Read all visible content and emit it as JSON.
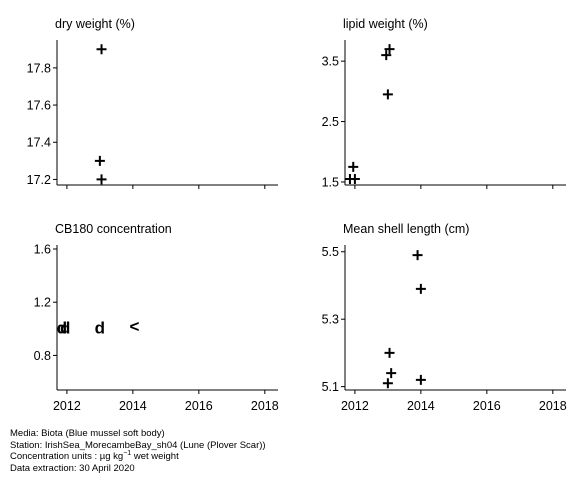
{
  "chart_data": [
    {
      "type": "scatter",
      "title": "dry weight (%)",
      "xlim": [
        2011.7,
        2018.4
      ],
      "ylim": [
        17.17,
        17.95
      ],
      "xticks": [
        2012,
        2014,
        2016,
        2018
      ],
      "yticks": [
        17.2,
        17.4,
        17.6,
        17.8
      ],
      "ytick_labels": [
        "17.2",
        "17.4",
        "17.6",
        "17.8"
      ],
      "show_x_labels": false,
      "points": [
        {
          "x": 2013.05,
          "y": 17.9,
          "marker": "+"
        },
        {
          "x": 2013.0,
          "y": 17.3,
          "marker": "+"
        },
        {
          "x": 2013.05,
          "y": 17.2,
          "marker": "+"
        }
      ]
    },
    {
      "type": "scatter",
      "title": "lipid weight (%)",
      "xlim": [
        2011.7,
        2018.4
      ],
      "ylim": [
        1.45,
        3.85
      ],
      "xticks": [
        2012,
        2014,
        2016,
        2018
      ],
      "yticks": [
        1.5,
        2.5,
        3.5
      ],
      "ytick_labels": [
        "1.5",
        "2.5",
        "3.5"
      ],
      "show_x_labels": false,
      "points": [
        {
          "x": 2013.05,
          "y": 3.7,
          "marker": "+"
        },
        {
          "x": 2012.95,
          "y": 3.6,
          "marker": "+"
        },
        {
          "x": 2013.0,
          "y": 2.95,
          "marker": "+"
        },
        {
          "x": 2011.95,
          "y": 1.75,
          "marker": "+"
        },
        {
          "x": 2011.85,
          "y": 1.55,
          "marker": "+"
        },
        {
          "x": 2012.0,
          "y": 1.55,
          "marker": "+"
        }
      ]
    },
    {
      "type": "scatter",
      "title": "CB180 concentration",
      "xlim": [
        2011.7,
        2018.4
      ],
      "ylim": [
        0.54,
        1.63
      ],
      "xticks": [
        2012,
        2014,
        2016,
        2018
      ],
      "yticks": [
        0.8,
        1.2,
        1.6
      ],
      "ytick_labels": [
        "0.8",
        "1.2",
        "1.6"
      ],
      "show_x_labels": true,
      "points": [
        {
          "x": 2011.85,
          "y": 1.01,
          "marker": "d"
        },
        {
          "x": 2011.95,
          "y": 1.01,
          "marker": "d"
        },
        {
          "x": 2013.0,
          "y": 1.01,
          "marker": "d"
        },
        {
          "x": 2014.05,
          "y": 1.02,
          "marker": "<"
        }
      ]
    },
    {
      "type": "scatter",
      "title": "Mean shell length (cm)",
      "xlim": [
        2011.7,
        2018.4
      ],
      "ylim": [
        5.09,
        5.52
      ],
      "xticks": [
        2012,
        2014,
        2016,
        2018
      ],
      "yticks": [
        5.1,
        5.3,
        5.5
      ],
      "ytick_labels": [
        "5.1",
        "5.3",
        "5.5"
      ],
      "show_x_labels": true,
      "points": [
        {
          "x": 2013.9,
          "y": 5.49,
          "marker": "+"
        },
        {
          "x": 2014.0,
          "y": 5.39,
          "marker": "+"
        },
        {
          "x": 2013.05,
          "y": 5.2,
          "marker": "+"
        },
        {
          "x": 2013.1,
          "y": 5.14,
          "marker": "+"
        },
        {
          "x": 2013.0,
          "y": 5.11,
          "marker": "+"
        },
        {
          "x": 2014.0,
          "y": 5.12,
          "marker": "+"
        }
      ]
    }
  ],
  "footer": {
    "media": "Media: Biota (Blue mussel soft body)",
    "station": "Station: IrishSea_MorecambeBay_sh04 (Lune (Plover Scar))",
    "units_prefix": "Concentration units :  µg kg",
    "units_exponent": "−1",
    "units_suffix": " wet weight",
    "extraction": "Data extraction: 30 April 2020"
  }
}
